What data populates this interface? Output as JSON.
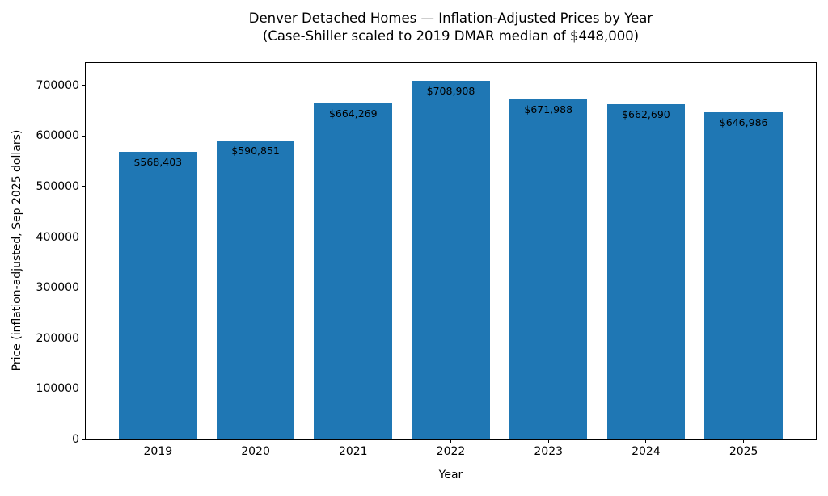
{
  "figure": {
    "title_line1": "Denver Detached Homes — Inflation-Adjusted Prices by Year",
    "title_line2": "(Case-Shiller scaled to 2019 DMAR median of $448,000)"
  },
  "chart_data": {
    "type": "bar",
    "title": "Denver Detached Homes — Inflation-Adjusted Prices by Year",
    "subtitle": "(Case-Shiller scaled to 2019 DMAR median of $448,000)",
    "categories": [
      "2019",
      "2020",
      "2021",
      "2022",
      "2023",
      "2024",
      "2025"
    ],
    "values": [
      568403,
      590851,
      664269,
      708908,
      671988,
      662690,
      646986
    ],
    "bar_labels": [
      "$568,403",
      "$590,851",
      "$664,269",
      "$708,908",
      "$671,988",
      "$662,690",
      "$646,986"
    ],
    "xlabel": "Year",
    "ylabel": "Price (inflation-adjusted, Sep 2025 dollars)",
    "ylim": [
      0,
      744353
    ],
    "yticks": [
      0,
      100000,
      200000,
      300000,
      400000,
      500000,
      600000,
      700000
    ],
    "ytick_labels": [
      "0",
      "100000",
      "200000",
      "300000",
      "400000",
      "500000",
      "600000",
      "700000"
    ],
    "grid": false,
    "legend": false,
    "bar_color": "#1f77b4",
    "bar_width_fraction": 0.8,
    "x_margin": 0.05,
    "background": "#ffffff",
    "text_color": "#000000"
  }
}
